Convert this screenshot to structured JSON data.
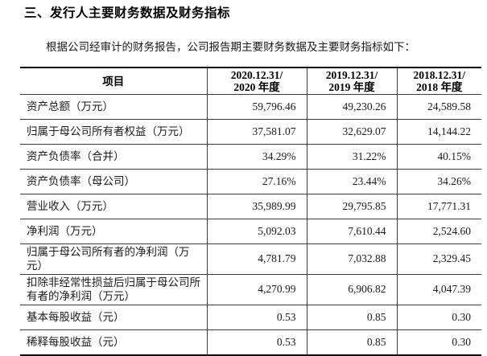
{
  "page": {
    "title": "三、发行人主要财务数据及财务指标",
    "intro": "根据公司经审计的财务报告，公司报告期主要财务数据及主要财务指标如下："
  },
  "table": {
    "header": {
      "item_label": "项目",
      "periods": [
        {
          "line1": "2020.12.31/",
          "line2": "2020 年度"
        },
        {
          "line1": "2019.12.31/",
          "line2": "2019 年度"
        },
        {
          "line1": "2018.12.31/",
          "line2": "2018 年度"
        }
      ]
    },
    "rows": [
      {
        "label": "资产总额（万元）",
        "values": [
          "59,796.46",
          "49,230.26",
          "24,589.58"
        ]
      },
      {
        "label": "归属于母公司所有者权益（万元）",
        "values": [
          "37,581.07",
          "32,629.07",
          "14,144.22"
        ]
      },
      {
        "label": "资产负债率（合并）",
        "values": [
          "34.29%",
          "31.22%",
          "40.15%"
        ]
      },
      {
        "label": "资产负债率（母公司）",
        "values": [
          "27.16%",
          "23.44%",
          "34.26%"
        ]
      },
      {
        "label": "营业收入（万元）",
        "values": [
          "35,989.99",
          "29,795.85",
          "17,771.31"
        ]
      },
      {
        "label": "净利润（万元）",
        "values": [
          "5,092.03",
          "7,610.44",
          "2,524.60"
        ]
      },
      {
        "label": "归属于母公司所有者的净利润（万元）",
        "values": [
          "4,781.79",
          "7,032.88",
          "2,329.45"
        ]
      },
      {
        "label": "扣除非经常性损益后归属于母公司所有者的净利润（万元）",
        "values": [
          "4,270.99",
          "6,906.82",
          "4,047.39"
        ]
      },
      {
        "label": "基本每股收益（元）",
        "values": [
          "0.53",
          "0.85",
          "0.30"
        ]
      },
      {
        "label": "稀释每股收益（元）",
        "values": [
          "0.53",
          "0.85",
          "0.30"
        ]
      }
    ]
  }
}
